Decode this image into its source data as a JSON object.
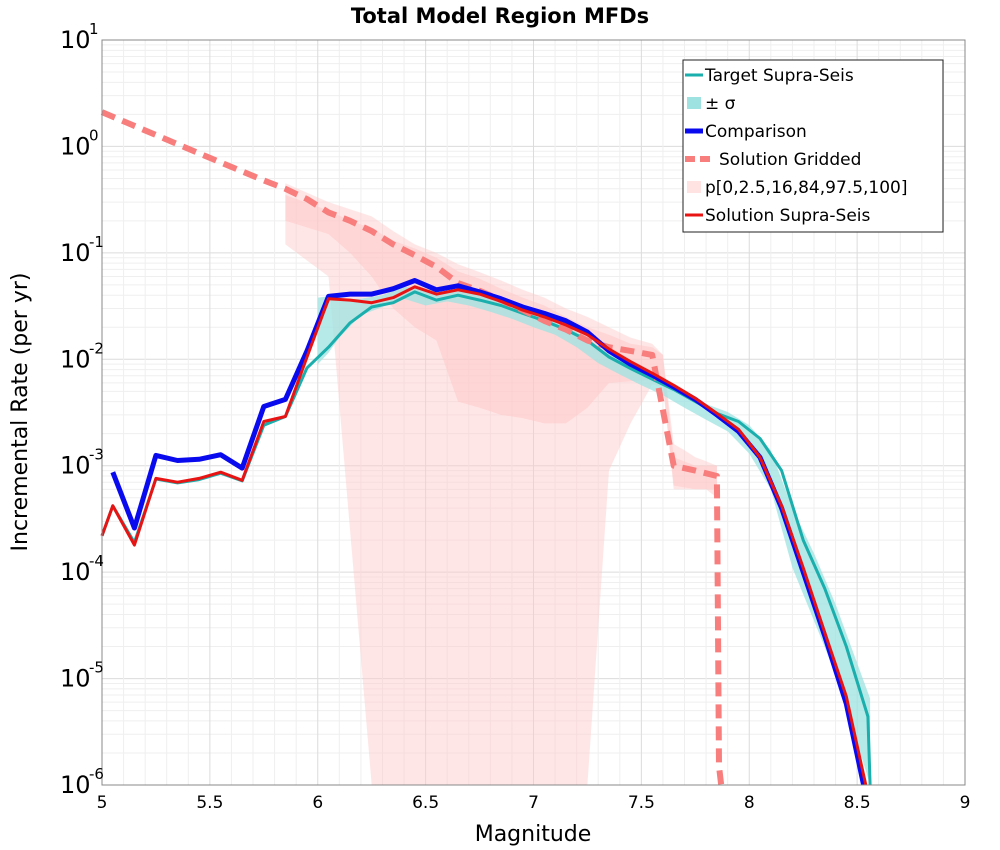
{
  "chart_data": {
    "type": "line",
    "title": "Total Model Region MFDs",
    "xlabel": "Magnitude",
    "ylabel": "Incremental Rate (per yr)",
    "xlim": [
      5,
      9
    ],
    "ylim_log10": [
      -6,
      1
    ],
    "yscale": "log",
    "grid": true,
    "legend_placement": "top-right",
    "xticks": [
      "5",
      "5.5",
      "6",
      "6.5",
      "7",
      "7.5",
      "8",
      "8.5",
      "9"
    ],
    "yticks": [
      {
        "base": "10",
        "exp": "1"
      },
      {
        "base": "10",
        "exp": "0"
      },
      {
        "base": "10",
        "exp": "-1"
      },
      {
        "base": "10",
        "exp": "-2"
      },
      {
        "base": "10",
        "exp": "-3"
      },
      {
        "base": "10",
        "exp": "-4"
      },
      {
        "base": "10",
        "exp": "-5"
      },
      {
        "base": "10",
        "exp": "-6"
      }
    ],
    "colors": {
      "target": "#1aaeac",
      "target_band": "#9ee3e2",
      "comparison": "#0a0aee",
      "gridded": "#f87d7d",
      "percentile_band": "#ffc8c8",
      "supra": "#e81414"
    },
    "series": [
      {
        "name": "Target Supra-Seis",
        "x": [
          5.0,
          5.05,
          5.15,
          5.25,
          5.35,
          5.45,
          5.55,
          5.65,
          5.75,
          5.85,
          5.95,
          6.05,
          6.15,
          6.25,
          6.35,
          6.45,
          6.55,
          6.65,
          6.75,
          6.85,
          6.95,
          7.05,
          7.15,
          7.25,
          7.35,
          7.45,
          7.55,
          7.65,
          7.75,
          7.85,
          7.95,
          8.05,
          8.15,
          8.25,
          8.35,
          8.45,
          8.55,
          8.56
        ],
        "y": [
          0.00022,
          0.00042,
          0.00019,
          0.00075,
          0.00069,
          0.00074,
          0.00085,
          0.00072,
          0.0024,
          0.0029,
          0.0083,
          0.013,
          0.022,
          0.031,
          0.034,
          0.043,
          0.036,
          0.04,
          0.036,
          0.032,
          0.027,
          0.023,
          0.019,
          0.015,
          0.0105,
          0.0082,
          0.0065,
          0.0052,
          0.004,
          0.0031,
          0.0026,
          0.0018,
          0.0009,
          0.0002,
          7e-05,
          2e-05,
          4.4e-06,
          1e-06
        ]
      },
      {
        "name": "Comparison",
        "x": [
          5.05,
          5.15,
          5.25,
          5.35,
          5.45,
          5.55,
          5.65,
          5.75,
          5.85,
          5.95,
          6.05,
          6.15,
          6.25,
          6.35,
          6.45,
          6.55,
          6.65,
          6.75,
          6.85,
          6.95,
          7.05,
          7.15,
          7.25,
          7.35,
          7.45,
          7.55,
          7.65,
          7.75,
          7.85,
          7.95,
          8.05,
          8.15,
          8.25,
          8.35,
          8.45,
          8.53
        ],
        "y": [
          0.00087,
          0.00026,
          0.00125,
          0.00112,
          0.00115,
          0.00127,
          0.00095,
          0.0036,
          0.0042,
          0.012,
          0.039,
          0.041,
          0.041,
          0.046,
          0.055,
          0.045,
          0.049,
          0.043,
          0.037,
          0.031,
          0.027,
          0.023,
          0.018,
          0.012,
          0.009,
          0.0071,
          0.0055,
          0.0042,
          0.003,
          0.0021,
          0.0012,
          0.0004,
          0.0001,
          2.5e-05,
          5.8e-06,
          1e-06
        ]
      },
      {
        "name": "Solution Gridded",
        "x": [
          5.0,
          5.25,
          5.5,
          5.75,
          5.85,
          5.95,
          6.05,
          6.15,
          6.25,
          6.35,
          6.45,
          6.55,
          6.65,
          6.75,
          6.85,
          6.95,
          7.05,
          7.15,
          7.25,
          7.35,
          7.45,
          7.55,
          7.65,
          7.75,
          7.85,
          7.86,
          7.87
        ],
        "y": [
          2.1,
          1.28,
          0.78,
          0.48,
          0.4,
          0.32,
          0.24,
          0.2,
          0.16,
          0.12,
          0.095,
          0.074,
          0.052,
          0.044,
          0.036,
          0.029,
          0.023,
          0.019,
          0.015,
          0.013,
          0.012,
          0.011,
          0.001,
          0.0009,
          0.0008,
          1.5e-06,
          1e-06
        ]
      },
      {
        "name": "Solution Supra-Seis",
        "x": [
          5.0,
          5.05,
          5.15,
          5.25,
          5.35,
          5.45,
          5.55,
          5.65,
          5.75,
          5.85,
          5.95,
          6.05,
          6.15,
          6.25,
          6.35,
          6.45,
          6.55,
          6.65,
          6.75,
          6.85,
          6.95,
          7.05,
          7.15,
          7.25,
          7.35,
          7.45,
          7.55,
          7.65,
          7.75,
          7.85,
          7.95,
          8.05,
          8.15,
          8.25,
          8.35,
          8.45,
          8.54
        ],
        "y": [
          0.00022,
          0.00042,
          0.00018,
          0.00076,
          0.0007,
          0.00076,
          0.00087,
          0.00073,
          0.0026,
          0.0029,
          0.0105,
          0.037,
          0.036,
          0.034,
          0.038,
          0.048,
          0.041,
          0.045,
          0.041,
          0.035,
          0.029,
          0.025,
          0.021,
          0.017,
          0.0125,
          0.0095,
          0.0074,
          0.0057,
          0.0043,
          0.0031,
          0.0022,
          0.0012,
          0.00042,
          0.00011,
          2.7e-05,
          6.8e-06,
          1e-06
        ]
      }
    ],
    "target_sigma_band": {
      "x": [
        6.0,
        6.05,
        6.1,
        6.2,
        6.3,
        6.4,
        6.5,
        6.6,
        6.7,
        6.8,
        6.9,
        7.0,
        7.1,
        7.2,
        7.3,
        7.4,
        7.5,
        7.6,
        7.7,
        7.8,
        7.9,
        8.0,
        8.1,
        8.2,
        8.3,
        8.4,
        8.5,
        8.56
      ],
      "upper": [
        0.038,
        0.039,
        0.037,
        0.037,
        0.04,
        0.048,
        0.045,
        0.047,
        0.042,
        0.037,
        0.031,
        0.027,
        0.022,
        0.018,
        0.013,
        0.0098,
        0.0078,
        0.0062,
        0.0049,
        0.0038,
        0.0032,
        0.0024,
        0.0014,
        0.0004,
        0.00015,
        5e-05,
        1.4e-05,
        6.5e-06
      ],
      "lower": [
        0.009,
        0.0115,
        0.016,
        0.026,
        0.031,
        0.037,
        0.032,
        0.035,
        0.032,
        0.028,
        0.024,
        0.02,
        0.017,
        0.013,
        0.0092,
        0.0072,
        0.0057,
        0.0046,
        0.0035,
        0.0027,
        0.0021,
        0.0013,
        0.0006,
        0.00011,
        3.5e-05,
        1.1e-05,
        2.5e-06,
        1e-06
      ]
    },
    "percentile_bands": {
      "outer": {
        "x": [
          5.85,
          6.05,
          6.25,
          6.35,
          6.45,
          6.55,
          6.65,
          6.75,
          6.85,
          6.95,
          7.05,
          7.15,
          7.25,
          7.35,
          7.45,
          7.55,
          7.6,
          7.65,
          7.7,
          7.75,
          7.8,
          7.85
        ],
        "upper": [
          0.45,
          0.3,
          0.22,
          0.16,
          0.12,
          0.1,
          0.078,
          0.066,
          0.055,
          0.045,
          0.038,
          0.03,
          0.025,
          0.02,
          0.016,
          0.014,
          0.011,
          0.0016,
          0.0014,
          0.0012,
          0.0011,
          0.001
        ],
        "lower": [
          0.12,
          0.06,
          1e-06,
          1e-06,
          1e-06,
          1e-06,
          1e-06,
          1e-06,
          1e-06,
          1e-06,
          1e-06,
          1e-06,
          1e-06,
          0.0009,
          0.0025,
          0.0058,
          0.0055,
          0.0006,
          0.0006,
          0.0006,
          0.0006,
          0.0005
        ]
      },
      "inner": {
        "x": [
          5.85,
          6.05,
          6.15,
          6.25,
          6.35,
          6.45,
          6.55,
          6.65,
          6.75,
          6.85,
          6.95,
          7.05,
          7.15,
          7.25,
          7.35,
          7.45,
          7.55,
          7.6,
          7.65,
          7.75,
          7.85
        ],
        "upper": [
          0.35,
          0.25,
          0.2,
          0.17,
          0.13,
          0.11,
          0.09,
          0.067,
          0.057,
          0.046,
          0.038,
          0.032,
          0.025,
          0.02,
          0.017,
          0.014,
          0.013,
          0.011,
          0.0012,
          0.001,
          0.001
        ],
        "lower": [
          0.2,
          0.15,
          0.1,
          0.06,
          0.03,
          0.02,
          0.015,
          0.004,
          0.0035,
          0.003,
          0.0028,
          0.0025,
          0.0025,
          0.0035,
          0.006,
          0.0062,
          0.0065,
          0.0062,
          0.00065,
          0.0006,
          0.0006
        ]
      }
    },
    "legend": [
      {
        "label": "Target Supra-Seis",
        "style": "line",
        "color": "#1aaeac"
      },
      {
        "label": "± σ",
        "style": "band",
        "color": "#9ee3e2"
      },
      {
        "label": "Comparison",
        "style": "thick-line",
        "color": "#0a0aee"
      },
      {
        "label": "Solution Gridded",
        "style": "dashed",
        "color": "#f87d7d"
      },
      {
        "label": "p[0,2.5,16,84,97.5,100]",
        "style": "band",
        "color": "#ffe2e2"
      },
      {
        "label": "Solution Supra-Seis",
        "style": "line",
        "color": "#e81414"
      }
    ]
  }
}
